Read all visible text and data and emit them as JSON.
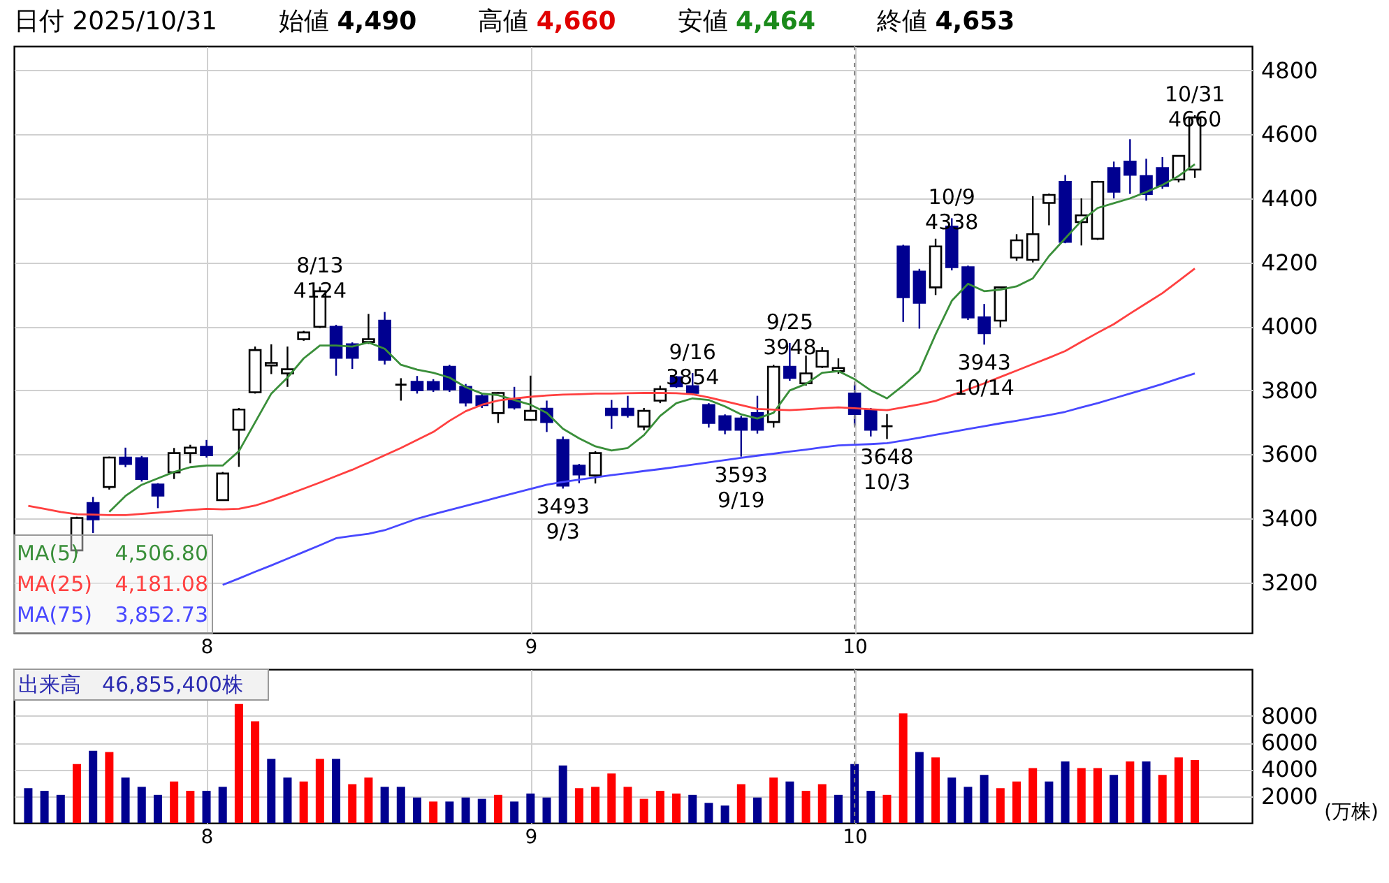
{
  "chart_data": [
    {
      "type": "candlestick",
      "title": "日付 2025/10/31",
      "categories": [
        null,
        null,
        null,
        null,
        null,
        null,
        null,
        null,
        null,
        null,
        null,
        "8",
        null,
        null,
        null,
        null,
        null,
        null,
        null,
        null,
        null,
        null,
        null,
        null,
        null,
        null,
        null,
        null,
        null,
        null,
        null,
        "9",
        null,
        null,
        null,
        null,
        null,
        null,
        null,
        null,
        null,
        null,
        null,
        null,
        null,
        null,
        null,
        null,
        null,
        null,
        null,
        "10",
        null,
        null,
        null,
        null,
        null,
        null,
        null,
        null,
        null,
        null,
        null,
        null,
        null,
        null,
        null,
        null,
        null,
        null,
        null,
        null,
        null
      ],
      "ohlc": [
        null,
        null,
        null,
        [
          3300,
          3405,
          3290,
          3401
        ],
        [
          3448,
          3467,
          3354,
          3397
        ],
        [
          3498,
          3593,
          3490,
          3590
        ],
        [
          3590,
          3621,
          3560,
          3570
        ],
        [
          3588,
          3595,
          3515,
          3523
        ],
        [
          3506,
          3510,
          3432,
          3471
        ],
        [
          3544,
          3620,
          3523,
          3604
        ],
        [
          3604,
          3630,
          3572,
          3621
        ],
        [
          3624,
          3645,
          3590,
          3597
        ],
        [
          3457,
          3545,
          3455,
          3540
        ],
        [
          3677,
          3745,
          3561,
          3740
        ],
        [
          3794,
          3937,
          3790,
          3926
        ],
        [
          3878,
          3944,
          3851,
          3886
        ],
        [
          3853,
          3937,
          3811,
          3866
        ],
        [
          3960,
          3986,
          3955,
          3981
        ],
        [
          3999,
          4124,
          3995,
          4110
        ],
        [
          3999,
          4005,
          3846,
          3902
        ],
        [
          3944,
          3950,
          3867,
          3902
        ],
        [
          3951,
          4039,
          3945,
          3960
        ],
        [
          4018,
          4045,
          3881,
          3895
        ],
        [
          3818,
          3838,
          3768,
          3818
        ],
        [
          3827,
          3845,
          3790,
          3800
        ],
        [
          3826,
          3835,
          3795,
          3803
        ],
        [
          3874,
          3880,
          3795,
          3803
        ],
        [
          3811,
          3820,
          3750,
          3762
        ],
        [
          3782,
          3790,
          3745,
          3754
        ],
        [
          3729,
          3795,
          3698,
          3792
        ],
        [
          3773,
          3811,
          3740,
          3747
        ],
        [
          3708,
          3846,
          3705,
          3736
        ],
        [
          3743,
          3768,
          3670,
          3701
        ],
        [
          3645,
          3656,
          3493,
          3502
        ],
        [
          3565,
          3570,
          3510,
          3537
        ],
        [
          3534,
          3610,
          3509,
          3604
        ],
        [
          3743,
          3770,
          3680,
          3723
        ],
        [
          3743,
          3783,
          3715,
          3723
        ],
        [
          3687,
          3745,
          3675,
          3736
        ],
        [
          3768,
          3815,
          3760,
          3804
        ],
        [
          3841,
          3845,
          3808,
          3813
        ],
        [
          3813,
          3854,
          3785,
          3792
        ],
        [
          3754,
          3760,
          3684,
          3698
        ],
        [
          3719,
          3725,
          3663,
          3677
        ],
        [
          3712,
          3720,
          3593,
          3677
        ],
        [
          3729,
          3783,
          3665,
          3677
        ],
        [
          3701,
          3880,
          3684,
          3874
        ],
        [
          3874,
          3948,
          3830,
          3839
        ],
        [
          3822,
          3909,
          3815,
          3853
        ],
        [
          3874,
          3935,
          3870,
          3923
        ],
        [
          3860,
          3900,
          3852,
          3870
        ],
        [
          3790,
          3818,
          3690,
          3726
        ],
        [
          3740,
          3745,
          3656,
          3677
        ],
        [
          3688,
          3726,
          3648,
          3688
        ],
        [
          4250,
          4255,
          4014,
          4091
        ],
        [
          4171,
          4180,
          3993,
          4074
        ],
        [
          4122,
          4274,
          4098,
          4250
        ],
        [
          4312,
          4338,
          4175,
          4185
        ],
        [
          4185,
          4190,
          4020,
          4028
        ],
        [
          4028,
          4070,
          3943,
          3979
        ],
        [
          4018,
          4125,
          3997,
          4122
        ],
        [
          4215,
          4288,
          4205,
          4269
        ],
        [
          4208,
          4407,
          4200,
          4288
        ],
        [
          4386,
          4415,
          4316,
          4411
        ],
        [
          4452,
          4473,
          4260,
          4264
        ],
        [
          4326,
          4400,
          4253,
          4347
        ],
        [
          4274,
          4455,
          4270,
          4452
        ],
        [
          4495,
          4515,
          4400,
          4421
        ],
        [
          4515,
          4585,
          4414,
          4474
        ],
        [
          4470,
          4524,
          4393,
          4414
        ],
        [
          4495,
          4529,
          4430,
          4439
        ],
        [
          4459,
          4535,
          4450,
          4533
        ],
        [
          4490,
          4660,
          4464,
          4653
        ]
      ],
      "series": [
        {
          "name": "MA(5)",
          "type": "line",
          "color": "#3a8f3a",
          "values": [
            null,
            null,
            null,
            null,
            null,
            3420,
            3470,
            3505,
            3525,
            3545,
            3560,
            3565,
            3565,
            3610,
            3700,
            3790,
            3840,
            3900,
            3940,
            3940,
            3937,
            3950,
            3930,
            3880,
            3865,
            3855,
            3840,
            3810,
            3790,
            3785,
            3770,
            3755,
            3730,
            3680,
            3650,
            3625,
            3612,
            3620,
            3660,
            3720,
            3760,
            3775,
            3770,
            3750,
            3725,
            3712,
            3730,
            3800,
            3820,
            3855,
            3860,
            3835,
            3800,
            3775,
            3815,
            3860,
            3975,
            4080,
            4133,
            4110,
            4115,
            4125,
            4150,
            4220,
            4275,
            4330,
            4370,
            4385,
            4400,
            4420,
            4442,
            4470,
            4507
          ]
        },
        {
          "name": "MA(25)",
          "type": "line",
          "color": "#ff4040",
          "values": [
            3439,
            3430,
            3420,
            3413,
            3412,
            3410,
            3410,
            3414,
            3418,
            3422,
            3426,
            3430,
            3428,
            3430,
            3440,
            3456,
            3474,
            3493,
            3512,
            3532,
            3552,
            3574,
            3597,
            3620,
            3645,
            3670,
            3705,
            3735,
            3755,
            3768,
            3775,
            3780,
            3784,
            3787,
            3788,
            3790,
            3790,
            3791,
            3792,
            3792,
            3791,
            3788,
            3778,
            3766,
            3754,
            3742,
            3740,
            3738,
            3741,
            3744,
            3747,
            3744,
            3741,
            3738,
            3747,
            3756,
            3767,
            3785,
            3803,
            3822,
            3842,
            3862,
            3882,
            3902,
            3923,
            3952,
            3980,
            4007,
            4040,
            4072,
            4104,
            4142,
            4181
          ]
        },
        {
          "name": "MA(75)",
          "type": "line",
          "color": "#4848ff",
          "values": [
            null,
            null,
            null,
            null,
            null,
            null,
            null,
            null,
            null,
            null,
            null,
            null,
            3192,
            3212,
            3233,
            3253,
            3274,
            3295,
            3316,
            3338,
            3345,
            3352,
            3363,
            3381,
            3399,
            3413,
            3426,
            3439,
            3452,
            3466,
            3479,
            3492,
            3505,
            3514,
            3521,
            3528,
            3535,
            3541,
            3548,
            3554,
            3561,
            3568,
            3575,
            3582,
            3589,
            3596,
            3602,
            3609,
            3615,
            3622,
            3628,
            3630,
            3632,
            3635,
            3643,
            3652,
            3661,
            3670,
            3679,
            3688,
            3697,
            3705,
            3714,
            3723,
            3733,
            3747,
            3760,
            3775,
            3790,
            3805,
            3820,
            3837,
            3853
          ]
        }
      ],
      "ylim": [
        3042,
        4876
      ],
      "yticks": [
        3200,
        3400,
        3600,
        3800,
        4000,
        4200,
        4400,
        4600,
        4800
      ],
      "grid": true,
      "legend": "bottom left",
      "ref_lines": [
        {
          "axis": "x",
          "value": "10",
          "color": "#808080",
          "line_style": "dashed"
        }
      ],
      "annotations": [
        "始値 4,490",
        "高値 4,660",
        "安値 4,464",
        "終値 4,653",
        "4,506.80",
        "4,181.08",
        "3,852.73",
        {
          "text": "8/13\n4124",
          "y": 4124
        },
        {
          "text": "3493\n9/3",
          "y": 3493
        },
        {
          "text": "9/16\n3854",
          "y": 3854
        },
        {
          "text": "3593\n9/19",
          "y": 3593
        },
        {
          "text": "9/25\n3948",
          "y": 3948
        },
        {
          "text": "3648\n10/3",
          "y": 3648
        },
        {
          "text": "10/9\n4338",
          "y": 4338
        },
        {
          "text": "3943\n10/14",
          "y": 3943
        },
        {
          "text": "10/31\n4660",
          "y": 4660
        }
      ]
    },
    {
      "type": "bar",
      "title": "出来高　46,855,400株",
      "ylabel": "(万株)",
      "categories": [
        null,
        null,
        null,
        null,
        null,
        null,
        null,
        null,
        null,
        null,
        null,
        "8",
        null,
        null,
        null,
        null,
        null,
        null,
        null,
        null,
        null,
        null,
        null,
        null,
        null,
        null,
        null,
        null,
        null,
        null,
        null,
        "9",
        null,
        null,
        null,
        null,
        null,
        null,
        null,
        null,
        null,
        null,
        null,
        null,
        null,
        null,
        null,
        null,
        null,
        null,
        null,
        "10",
        null,
        null,
        null,
        null,
        null,
        null,
        null,
        null,
        null,
        null,
        null,
        null,
        null,
        null,
        null,
        null,
        null,
        null,
        null,
        null,
        null
      ],
      "values": [
        2600,
        2400,
        2100,
        4400,
        5400,
        5300,
        3400,
        2700,
        2100,
        3100,
        2400,
        2400,
        2700,
        8900,
        7600,
        4800,
        3400,
        3100,
        4800,
        4800,
        2900,
        3400,
        2700,
        2700,
        1900,
        1600,
        1600,
        1900,
        1800,
        2100,
        1600,
        2200,
        1900,
        4300,
        2600,
        2700,
        3700,
        2700,
        1800,
        2400,
        2200,
        2100,
        1500,
        1300,
        2900,
        1900,
        3400,
        3100,
        2400,
        2900,
        2100,
        4400,
        2400,
        2100,
        8200,
        5300,
        4900,
        3400,
        2700,
        3600,
        2600,
        3100,
        4100,
        3100,
        4600,
        4100,
        4100,
        3600,
        4600,
        4600,
        3600,
        4900,
        4700
      ],
      "colors": [
        "#000090",
        "#000090",
        "#000090",
        "#ff0000",
        "#000090",
        "#ff0000",
        "#000090",
        "#000090",
        "#000090",
        "#ff0000",
        "#ff0000",
        "#000090",
        "#000090",
        "#ff0000",
        "#ff0000",
        "#000090",
        "#000090",
        "#ff0000",
        "#ff0000",
        "#000090",
        "#ff0000",
        "#ff0000",
        "#000090",
        "#000090",
        "#000090",
        "#ff0000",
        "#000090",
        "#000090",
        "#000090",
        "#ff0000",
        "#000090",
        "#000090",
        "#000090",
        "#000090",
        "#ff0000",
        "#ff0000",
        "#ff0000",
        "#ff0000",
        "#ff0000",
        "#ff0000",
        "#ff0000",
        "#000090",
        "#000090",
        "#000090",
        "#ff0000",
        "#000090",
        "#ff0000",
        "#000090",
        "#ff0000",
        "#ff0000",
        "#000090",
        "#000090",
        "#000090",
        "#ff0000",
        "#ff0000",
        "#000090",
        "#ff0000",
        "#000090",
        "#000090",
        "#000090",
        "#ff0000",
        "#ff0000",
        "#ff0000",
        "#000090",
        "#000090",
        "#ff0000",
        "#ff0000",
        "#000090",
        "#ff0000",
        "#000090",
        "#ff0000",
        "#ff0000",
        "#ff0000"
      ],
      "ylim": [
        0,
        11500
      ],
      "yticks": [
        2000,
        4000,
        6000,
        8000
      ],
      "grid": true,
      "ref_lines": [
        {
          "axis": "x",
          "value": "10",
          "color": "#808080",
          "line_style": "dashed"
        }
      ]
    }
  ]
}
